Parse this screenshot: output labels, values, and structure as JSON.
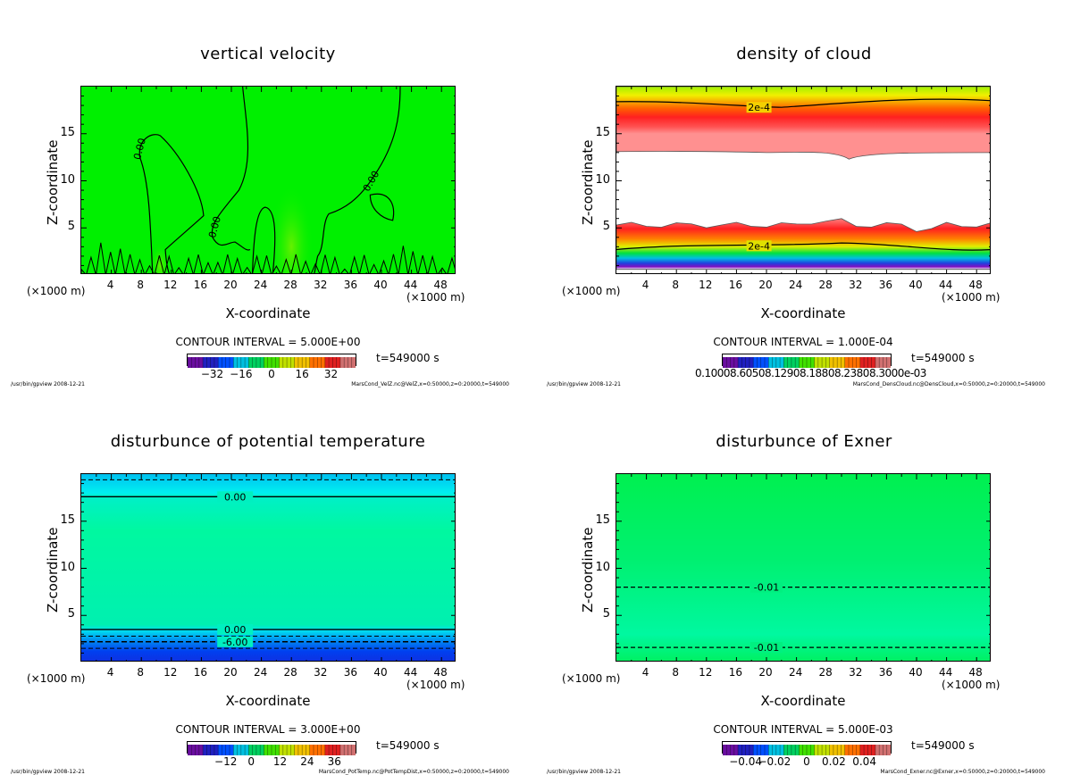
{
  "chart_data": [
    {
      "type": "heatmap",
      "title": "vertical velocity",
      "xlabel": "X-coordinate",
      "ylabel": "Z-coordinate",
      "x_unit": "(×1000 m)",
      "y_unit": "(×1000 m)",
      "xlim": [
        0,
        50
      ],
      "ylim": [
        0,
        20
      ],
      "x_ticks": [
        "4",
        "8",
        "12",
        "16",
        "20",
        "24",
        "28",
        "32",
        "36",
        "40",
        "44",
        "48"
      ],
      "y_ticks": [
        "5",
        "10",
        "15"
      ],
      "contour_interval": "CONTOUR INTERVAL = 5.000E+00",
      "contour_labels": [
        "0.00",
        "0.00",
        "0.00"
      ],
      "colorbar_ticks": [
        "−32",
        "−16",
        "0",
        "16",
        "32"
      ],
      "colorbar_range": [
        -40,
        40
      ],
      "time": "t=549000 s",
      "footer_left": "/usr/bin/gpview  2008-12-21",
      "footer_right": "MarsCond_VelZ.nc@VelZ,x=0:50000,z=0:20000,t=549000",
      "fill_color": "#00f000"
    },
    {
      "type": "heatmap",
      "title": "density of cloud",
      "xlabel": "X-coordinate",
      "ylabel": "Z-coordinate",
      "x_unit": "(×1000 m)",
      "y_unit": "(×1000 m)",
      "xlim": [
        0,
        50
      ],
      "ylim": [
        0,
        20
      ],
      "x_ticks": [
        "4",
        "8",
        "12",
        "16",
        "20",
        "24",
        "28",
        "32",
        "36",
        "40",
        "44",
        "48"
      ],
      "y_ticks": [
        "5",
        "10",
        "15"
      ],
      "contour_interval": "CONTOUR INTERVAL = 1.000E-04",
      "contour_labels": [
        "2e-4",
        "2e-4"
      ],
      "colorbar_ticks_text": "0.10008.60508.12908.18808.23808.3000e-03",
      "time": "t=549000 s",
      "footer_left": "/usr/bin/gpview  2008-12-21",
      "footer_right": "MarsCond_DensCloud.nc@DensCloud,x=0:50000,z=0:20000,t=549000"
    },
    {
      "type": "heatmap",
      "title": "disturbunce of potential temperature",
      "xlabel": "X-coordinate",
      "ylabel": "Z-coordinate",
      "x_unit": "(×1000 m)",
      "y_unit": "(×1000 m)",
      "xlim": [
        0,
        50
      ],
      "ylim": [
        0,
        20
      ],
      "x_ticks": [
        "4",
        "8",
        "12",
        "16",
        "20",
        "24",
        "28",
        "32",
        "36",
        "40",
        "44",
        "48"
      ],
      "y_ticks": [
        "5",
        "10",
        "15"
      ],
      "contour_interval": "CONTOUR INTERVAL = 3.000E+00",
      "contour_labels": [
        "0.00",
        "0.00",
        "-6.00"
      ],
      "contour_levels_z": [
        17.6,
        3.5,
        2.2
      ],
      "colorbar_ticks": [
        "−12",
        "0",
        "12",
        "24",
        "36"
      ],
      "time": "t=549000 s",
      "footer_left": "/usr/bin/gpview  2008-12-21",
      "footer_right": "MarsCond_PotTemp.nc@PotTempDist,x=0:50000,z=0:20000,t=549000"
    },
    {
      "type": "heatmap",
      "title": "disturbunce of Exner",
      "xlabel": "X-coordinate",
      "ylabel": "Z-coordinate",
      "x_unit": "(×1000 m)",
      "y_unit": "(×1000 m)",
      "xlim": [
        0,
        50
      ],
      "ylim": [
        0,
        20
      ],
      "x_ticks": [
        "4",
        "8",
        "12",
        "16",
        "20",
        "24",
        "28",
        "32",
        "36",
        "40",
        "44",
        "48"
      ],
      "y_ticks": [
        "5",
        "10",
        "15"
      ],
      "contour_interval": "CONTOUR INTERVAL = 5.000E-03",
      "contour_labels": [
        "-0.01",
        "-0.01"
      ],
      "contour_levels_z": [
        8.0,
        1.6
      ],
      "colorbar_ticks": [
        "−0.04",
        "−0.02",
        "0",
        "0.02",
        "0.04"
      ],
      "time": "t=549000 s",
      "footer_left": "/usr/bin/gpview  2008-12-21",
      "footer_right": "MarsCond_Exner.nc@Exner,x=0:50000,z=0:20000,t=549000"
    }
  ]
}
